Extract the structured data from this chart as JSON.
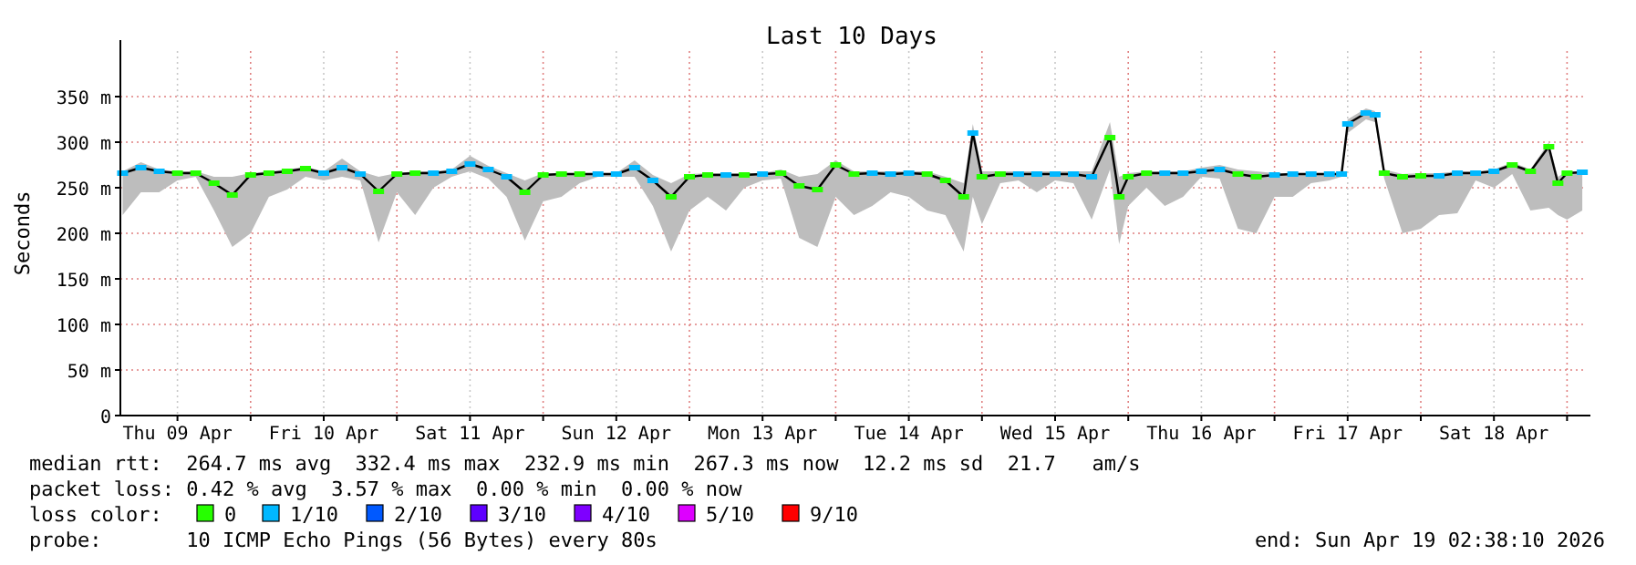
{
  "chart_data": {
    "type": "line",
    "title": "Last 10 Days",
    "ylabel": "Seconds",
    "legend_title": "loss color:",
    "legend": "bottom",
    "grid": true,
    "xlim": [
      "2026-04-09T02:38",
      "2026-04-19T02:38"
    ],
    "xticks": [
      {
        "value": "2026-04-09T12:00",
        "label": "Thu 09 Apr"
      },
      {
        "value": "2026-04-10T00:00",
        "label": null
      },
      {
        "value": "2026-04-10T12:00",
        "label": "Fri 10 Apr"
      },
      {
        "value": "2026-04-11T00:00",
        "label": null
      },
      {
        "value": "2026-04-11T12:00",
        "label": "Sat 11 Apr"
      },
      {
        "value": "2026-04-12T00:00",
        "label": null
      },
      {
        "value": "2026-04-12T12:00",
        "label": "Sun 12 Apr"
      },
      {
        "value": "2026-04-13T00:00",
        "label": null
      },
      {
        "value": "2026-04-13T12:00",
        "label": "Mon 13 Apr"
      },
      {
        "value": "2026-04-14T00:00",
        "label": null
      },
      {
        "value": "2026-04-14T12:00",
        "label": "Tue 14 Apr"
      },
      {
        "value": "2026-04-15T00:00",
        "label": null
      },
      {
        "value": "2026-04-15T12:00",
        "label": "Wed 15 Apr"
      },
      {
        "value": "2026-04-16T00:00",
        "label": null
      },
      {
        "value": "2026-04-16T12:00",
        "label": "Thu 16 Apr"
      },
      {
        "value": "2026-04-17T00:00",
        "label": null
      },
      {
        "value": "2026-04-17T12:00",
        "label": "Fri 17 Apr"
      },
      {
        "value": "2026-04-18T00:00",
        "label": null
      },
      {
        "value": "2026-04-18T12:00",
        "label": "Sat 18 Apr"
      },
      {
        "value": "2026-04-19T00:00",
        "label": null
      }
    ],
    "ylim": [
      0,
      400
    ],
    "yticks": [
      0,
      {
        "value": 50,
        "label": "50 m"
      },
      {
        "value": 100,
        "label": "100 m"
      },
      {
        "value": 150,
        "label": "150 m"
      },
      {
        "value": 200,
        "label": "200 m"
      },
      {
        "value": 250,
        "label": "250 m"
      },
      {
        "value": 300,
        "label": "300 m"
      },
      {
        "value": 350,
        "label": "350 m"
      }
    ],
    "x": [
      "2026-04-09T03:00",
      "2026-04-09T06:00",
      "2026-04-09T09:00",
      "2026-04-09T12:00",
      "2026-04-09T15:00",
      "2026-04-09T18:00",
      "2026-04-09T21:00",
      "2026-04-10T00:00",
      "2026-04-10T03:00",
      "2026-04-10T06:00",
      "2026-04-10T09:00",
      "2026-04-10T12:00",
      "2026-04-10T15:00",
      "2026-04-10T18:00",
      "2026-04-10T21:00",
      "2026-04-11T00:00",
      "2026-04-11T03:00",
      "2026-04-11T06:00",
      "2026-04-11T09:00",
      "2026-04-11T12:00",
      "2026-04-11T15:00",
      "2026-04-11T18:00",
      "2026-04-11T21:00",
      "2026-04-12T00:00",
      "2026-04-12T03:00",
      "2026-04-12T06:00",
      "2026-04-12T09:00",
      "2026-04-12T12:00",
      "2026-04-12T15:00",
      "2026-04-12T18:00",
      "2026-04-12T21:00",
      "2026-04-13T00:00",
      "2026-04-13T03:00",
      "2026-04-13T06:00",
      "2026-04-13T09:00",
      "2026-04-13T12:00",
      "2026-04-13T15:00",
      "2026-04-13T18:00",
      "2026-04-13T21:00",
      "2026-04-14T00:00",
      "2026-04-14T03:00",
      "2026-04-14T06:00",
      "2026-04-14T09:00",
      "2026-04-14T12:00",
      "2026-04-14T15:00",
      "2026-04-14T18:00",
      "2026-04-14T21:00",
      "2026-04-14T22:30",
      "2026-04-15T00:00",
      "2026-04-15T03:00",
      "2026-04-15T06:00",
      "2026-04-15T09:00",
      "2026-04-15T12:00",
      "2026-04-15T15:00",
      "2026-04-15T18:00",
      "2026-04-15T21:00",
      "2026-04-15T22:30",
      "2026-04-16T00:00",
      "2026-04-16T03:00",
      "2026-04-16T06:00",
      "2026-04-16T09:00",
      "2026-04-16T12:00",
      "2026-04-16T15:00",
      "2026-04-16T18:00",
      "2026-04-16T21:00",
      "2026-04-17T00:00",
      "2026-04-17T03:00",
      "2026-04-17T06:00",
      "2026-04-17T09:00",
      "2026-04-17T11:00",
      "2026-04-17T12:00",
      "2026-04-17T15:00",
      "2026-04-17T16:30",
      "2026-04-17T18:00",
      "2026-04-17T21:00",
      "2026-04-18T00:00",
      "2026-04-18T03:00",
      "2026-04-18T06:00",
      "2026-04-18T09:00",
      "2026-04-18T12:00",
      "2026-04-18T15:00",
      "2026-04-18T18:00",
      "2026-04-18T21:00",
      "2026-04-18T22:30",
      "2026-04-19T00:00",
      "2026-04-19T02:30"
    ],
    "series": [
      {
        "color": "#000000",
        "values": [
          266,
          272,
          268,
          266,
          266,
          255,
          242,
          264,
          266,
          268,
          271,
          266,
          272,
          265,
          246,
          265,
          266,
          266,
          268,
          276,
          270,
          262,
          245,
          264,
          265,
          265,
          265,
          265,
          272,
          258,
          240,
          262,
          264,
          264,
          264,
          265,
          266,
          252,
          248,
          275,
          265,
          266,
          265,
          266,
          265,
          258,
          240,
          310,
          262,
          265,
          265,
          265,
          265,
          265,
          262,
          305,
          240,
          262,
          266,
          266,
          266,
          268,
          270,
          265,
          262,
          264,
          265,
          265,
          265,
          265,
          320,
          332,
          330,
          266,
          262,
          263,
          263,
          266,
          266,
          268,
          275,
          268,
          295,
          255,
          266,
          267
        ],
        "lower": [
          220,
          245,
          245,
          258,
          262,
          225,
          185,
          200,
          240,
          248,
          262,
          258,
          262,
          258,
          190,
          245,
          220,
          250,
          262,
          268,
          260,
          240,
          192,
          235,
          240,
          255,
          262,
          262,
          262,
          230,
          180,
          225,
          240,
          225,
          250,
          258,
          260,
          195,
          185,
          240,
          220,
          230,
          245,
          240,
          225,
          220,
          180,
          240,
          210,
          255,
          258,
          245,
          258,
          255,
          215,
          270,
          188,
          230,
          250,
          230,
          240,
          262,
          260,
          205,
          200,
          240,
          240,
          255,
          258,
          262,
          310,
          325,
          322,
          260,
          200,
          205,
          220,
          222,
          258,
          250,
          265,
          225,
          228,
          220,
          215,
          225
        ],
        "upper": [
          268,
          278,
          270,
          268,
          268,
          262,
          262,
          266,
          268,
          270,
          273,
          268,
          282,
          268,
          262,
          266,
          268,
          268,
          270,
          285,
          274,
          266,
          258,
          266,
          266,
          266,
          266,
          266,
          280,
          264,
          255,
          265,
          266,
          266,
          266,
          266,
          270,
          262,
          265,
          280,
          268,
          268,
          268,
          268,
          268,
          262,
          255,
          320,
          268,
          268,
          268,
          268,
          268,
          268,
          268,
          322,
          262,
          266,
          268,
          268,
          268,
          272,
          275,
          270,
          268,
          266,
          266,
          266,
          266,
          266,
          325,
          337,
          334,
          270,
          265,
          266,
          266,
          268,
          268,
          270,
          278,
          270,
          300,
          262,
          268,
          268
        ]
      },
      {
        "type": "scatter",
        "name": "0",
        "color": "#26ff00",
        "marker": "square",
        "values": [
          null,
          null,
          null,
          266,
          266,
          255,
          242,
          264,
          266,
          268,
          271,
          null,
          null,
          null,
          246,
          265,
          266,
          null,
          null,
          null,
          null,
          null,
          245,
          264,
          265,
          265,
          null,
          null,
          null,
          null,
          240,
          262,
          264,
          null,
          264,
          null,
          266,
          252,
          248,
          275,
          265,
          null,
          null,
          null,
          265,
          258,
          240,
          null,
          262,
          265,
          null,
          null,
          null,
          null,
          null,
          305,
          240,
          262,
          266,
          null,
          null,
          null,
          null,
          265,
          262,
          null,
          null,
          null,
          null,
          null,
          null,
          null,
          null,
          266,
          262,
          263,
          null,
          null,
          null,
          null,
          275,
          268,
          295,
          255,
          266,
          null
        ]
      },
      {
        "type": "scatter",
        "name": "1/10",
        "color": "#00b8ff",
        "marker": "square",
        "values": [
          266,
          272,
          268,
          null,
          null,
          null,
          null,
          null,
          null,
          null,
          null,
          266,
          272,
          265,
          null,
          null,
          null,
          266,
          268,
          276,
          270,
          262,
          null,
          null,
          null,
          null,
          265,
          265,
          272,
          258,
          null,
          null,
          null,
          264,
          null,
          265,
          null,
          null,
          null,
          null,
          null,
          266,
          265,
          266,
          null,
          null,
          null,
          310,
          null,
          null,
          265,
          265,
          265,
          265,
          262,
          null,
          null,
          null,
          null,
          266,
          266,
          268,
          270,
          null,
          null,
          264,
          265,
          265,
          265,
          265,
          320,
          332,
          330,
          null,
          null,
          null,
          263,
          266,
          266,
          268,
          null,
          null,
          null,
          null,
          null,
          267
        ]
      },
      {
        "type": "scatter",
        "name": "2/10",
        "color": "#0059ff",
        "values": [
          null,
          null,
          null,
          null,
          null,
          null,
          null,
          null,
          null,
          null,
          null,
          null,
          null,
          null,
          null,
          null,
          null,
          null,
          null,
          null,
          null,
          null,
          null,
          null,
          null,
          null,
          null,
          null,
          null,
          null,
          null,
          null,
          null,
          null,
          null,
          null,
          null,
          null,
          null,
          null,
          null,
          null,
          null,
          null,
          null,
          null,
          null,
          null,
          null,
          null,
          null,
          null,
          null,
          null,
          null,
          null,
          null,
          null,
          null,
          null,
          null,
          null,
          null,
          null,
          null,
          null,
          null,
          null,
          null,
          null,
          null,
          null,
          null,
          null,
          null,
          null,
          null,
          null,
          null,
          null,
          null,
          null,
          null,
          null,
          null,
          null
        ]
      },
      {
        "type": "scatter",
        "name": "3/10",
        "color": "#5e00ff",
        "values": [
          null,
          null,
          null,
          null,
          null,
          null,
          null,
          null,
          null,
          null,
          null,
          null,
          null,
          null,
          null,
          null,
          null,
          null,
          null,
          null,
          null,
          null,
          null,
          null,
          null,
          null,
          null,
          null,
          null,
          null,
          null,
          null,
          null,
          null,
          null,
          null,
          null,
          null,
          null,
          null,
          null,
          null,
          null,
          null,
          null,
          null,
          null,
          null,
          null,
          null,
          null,
          null,
          null,
          null,
          null,
          null,
          null,
          null,
          null,
          null,
          null,
          null,
          null,
          null,
          null,
          null,
          null,
          null,
          null,
          null,
          null,
          null,
          null,
          null,
          null,
          null,
          null,
          null,
          null,
          null,
          null,
          null,
          null,
          null,
          null,
          null
        ]
      },
      {
        "type": "scatter",
        "name": "4/10",
        "color": "#7e00ff",
        "values": [
          null,
          null,
          null,
          null,
          null,
          null,
          null,
          null,
          null,
          null,
          null,
          null,
          null,
          null,
          null,
          null,
          null,
          null,
          null,
          null,
          null,
          null,
          null,
          null,
          null,
          null,
          null,
          null,
          null,
          null,
          null,
          null,
          null,
          null,
          null,
          null,
          null,
          null,
          null,
          null,
          null,
          null,
          null,
          null,
          null,
          null,
          null,
          null,
          null,
          null,
          null,
          null,
          null,
          null,
          null,
          null,
          null,
          null,
          null,
          null,
          null,
          null,
          null,
          null,
          null,
          null,
          null,
          null,
          null,
          null,
          null,
          null,
          null,
          null,
          null,
          null,
          null,
          null,
          null,
          null,
          null,
          null,
          null,
          null,
          null,
          null
        ]
      },
      {
        "type": "scatter",
        "name": "5/10",
        "color": "#dd00ff",
        "values": [
          null,
          null,
          null,
          null,
          null,
          null,
          null,
          null,
          null,
          null,
          null,
          null,
          null,
          null,
          null,
          null,
          null,
          null,
          null,
          null,
          null,
          null,
          null,
          null,
          null,
          null,
          null,
          null,
          null,
          null,
          null,
          null,
          null,
          null,
          null,
          null,
          null,
          null,
          null,
          null,
          null,
          null,
          null,
          null,
          null,
          null,
          null,
          null,
          null,
          null,
          null,
          null,
          null,
          null,
          null,
          null,
          null,
          null,
          null,
          null,
          null,
          null,
          null,
          null,
          null,
          null,
          null,
          null,
          null,
          null,
          null,
          null,
          null,
          null,
          null,
          null,
          null,
          null,
          null,
          null,
          null,
          null,
          null,
          null,
          null,
          null
        ]
      },
      {
        "type": "scatter",
        "name": "9/10",
        "color": "#ff0000",
        "values": [
          null,
          null,
          null,
          null,
          null,
          null,
          null,
          null,
          null,
          null,
          null,
          null,
          null,
          null,
          null,
          null,
          null,
          null,
          null,
          null,
          null,
          null,
          null,
          null,
          null,
          null,
          null,
          null,
          null,
          null,
          null,
          null,
          null,
          null,
          null,
          null,
          null,
          null,
          null,
          null,
          null,
          null,
          null,
          null,
          null,
          null,
          null,
          null,
          null,
          null,
          null,
          null,
          null,
          null,
          null,
          null,
          null,
          null,
          null,
          null,
          null,
          null,
          null,
          null,
          null,
          null,
          null,
          null,
          null,
          null,
          null,
          null,
          null,
          null,
          null,
          null,
          null,
          null,
          null,
          null,
          null,
          null,
          null,
          null,
          null,
          null
        ]
      }
    ],
    "annotations": [
      "median rtt:  264.7 ms avg  332.4 ms max  232.9 ms min  267.3 ms now  12.2 ms sd  21.7   am/s",
      "packet loss: 0.42 % avg  3.57 % max  0.00 % min  0.00 % now",
      "probe:       10 ICMP Echo Pings (56 Bytes) every 80s",
      "end: Sun Apr 19 02:38:10 2026"
    ]
  }
}
